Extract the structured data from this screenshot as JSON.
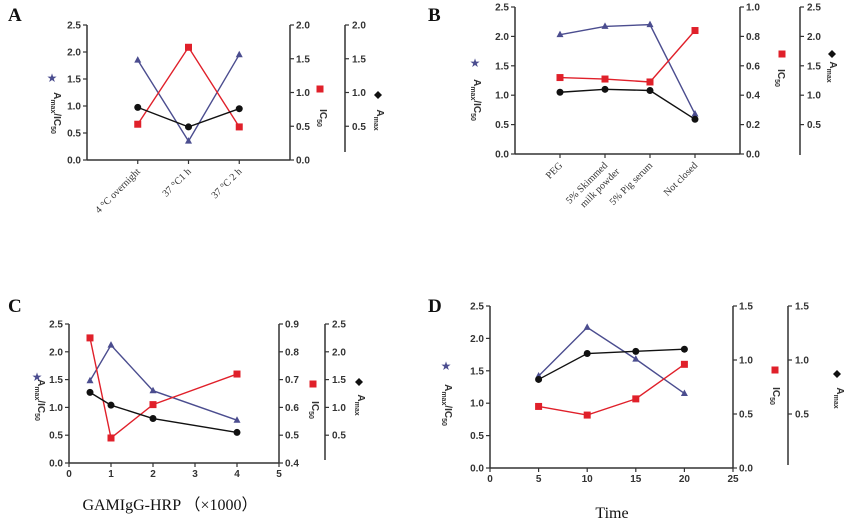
{
  "colors": {
    "ratio": "#4b4d8f",
    "ic50": "#e0202a",
    "amax": "#111111"
  },
  "chart_data": [
    {
      "panel": "A",
      "type": "line",
      "x_type": "category",
      "categories": [
        "4 °C overnight",
        "37 °C1 h",
        "37 °C 2 h"
      ],
      "xlabel": "",
      "left_axis": {
        "label": [
          [
            "A",
            ""
          ],
          [
            "max",
            "sub"
          ],
          [
            "/IC",
            ""
          ],
          [
            "50",
            "sub"
          ]
        ],
        "range": [
          0,
          2.5
        ],
        "ticks": [
          0,
          0.5,
          1,
          1.5,
          2,
          2.5
        ]
      },
      "ic50_axis": {
        "label": [
          [
            "IC",
            ""
          ],
          [
            "50",
            "sub"
          ]
        ],
        "range": [
          0,
          2
        ],
        "ticks": [
          0,
          0.5,
          1,
          1.5,
          2
        ]
      },
      "amax_axis": {
        "label": [
          [
            "A",
            ""
          ],
          [
            "max",
            "sub"
          ]
        ],
        "range": [
          0,
          2
        ],
        "ticks": [
          0.5,
          1,
          1.5,
          2
        ]
      },
      "series": [
        {
          "axis": "left",
          "marker": "triangle",
          "values": [
            1.85,
            0.35,
            1.95
          ]
        },
        {
          "axis": "ic50",
          "marker": "square",
          "values": [
            0.53,
            1.67,
            0.49
          ]
        },
        {
          "axis": "amax",
          "marker": "circle",
          "values": [
            0.78,
            0.49,
            0.76
          ]
        }
      ]
    },
    {
      "panel": "B",
      "type": "line",
      "x_type": "category",
      "categories": [
        "PEG",
        "5% Skimmed\nmilk powder",
        "5% Pig serum",
        "Not closed"
      ],
      "xlabel": "",
      "left_axis": {
        "label": [
          [
            "A",
            ""
          ],
          [
            "max",
            "sub"
          ],
          [
            "/IC",
            ""
          ],
          [
            "50",
            "sub"
          ]
        ],
        "range": [
          0,
          2.5
        ],
        "ticks": [
          0,
          0.5,
          1,
          1.5,
          2,
          2.5
        ]
      },
      "ic50_axis": {
        "label": [
          [
            "IC",
            ""
          ],
          [
            "50",
            "sub"
          ]
        ],
        "range": [
          0,
          1
        ],
        "ticks": [
          0,
          0.2,
          0.4,
          0.6,
          0.8,
          1.0
        ]
      },
      "amax_axis": {
        "label": [
          [
            "A",
            ""
          ],
          [
            "max",
            "sub"
          ]
        ],
        "range": [
          0,
          2.5
        ],
        "ticks": [
          0.5,
          1,
          1.5,
          2,
          2.5
        ]
      },
      "series": [
        {
          "axis": "left",
          "marker": "triangle",
          "values": [
            2.03,
            2.17,
            2.2,
            0.68
          ]
        },
        {
          "axis": "ic50",
          "marker": "square",
          "values": [
            0.52,
            0.51,
            0.49,
            0.84
          ]
        },
        {
          "axis": "amax",
          "marker": "circle",
          "values": [
            1.05,
            1.1,
            1.08,
            0.59
          ]
        }
      ]
    },
    {
      "panel": "C",
      "type": "line",
      "x_type": "numeric",
      "x": [
        0.5,
        1,
        2,
        4
      ],
      "xlim": [
        0,
        5
      ],
      "xticks": [
        0,
        1,
        2,
        3,
        4,
        5
      ],
      "xlabel": "GAMIgG-HRP （×1000）",
      "left_axis": {
        "label": [
          [
            "A",
            ""
          ],
          [
            "max",
            "sub"
          ],
          [
            "/IC",
            ""
          ],
          [
            "50",
            "sub"
          ]
        ],
        "range": [
          0,
          2.5
        ],
        "ticks": [
          0,
          0.5,
          1,
          1.5,
          2,
          2.5
        ]
      },
      "ic50_axis": {
        "label": [
          [
            "IC",
            ""
          ],
          [
            "50",
            "sub"
          ]
        ],
        "range": [
          0.4,
          0.9
        ],
        "ticks": [
          0.4,
          0.5,
          0.6,
          0.7,
          0.8,
          0.9
        ]
      },
      "amax_axis": {
        "label": [
          [
            "A",
            ""
          ],
          [
            "max",
            "sub"
          ]
        ],
        "range": [
          0,
          2.5
        ],
        "ticks": [
          0.5,
          1,
          1.5,
          2,
          2.5
        ]
      },
      "series": [
        {
          "axis": "left",
          "marker": "triangle",
          "values": [
            1.48,
            2.12,
            1.3,
            0.77
          ]
        },
        {
          "axis": "ic50",
          "marker": "square",
          "values": [
            0.85,
            0.49,
            0.61,
            0.72
          ]
        },
        {
          "axis": "amax",
          "marker": "circle",
          "values": [
            1.27,
            1.04,
            0.8,
            0.55
          ]
        }
      ]
    },
    {
      "panel": "D",
      "type": "line",
      "x_type": "numeric",
      "x": [
        5,
        10,
        15,
        20
      ],
      "xlim": [
        0,
        25
      ],
      "xticks": [
        0,
        5,
        10,
        15,
        20,
        25
      ],
      "xlabel": "Time",
      "left_axis": {
        "label": [
          [
            "A",
            ""
          ],
          [
            "max",
            "sub"
          ],
          [
            "/IC",
            ""
          ],
          [
            "50",
            "sub"
          ]
        ],
        "range": [
          0,
          2.5
        ],
        "ticks": [
          0,
          0.5,
          1,
          1.5,
          2,
          2.5
        ]
      },
      "ic50_axis": {
        "label": [
          [
            "IC",
            ""
          ],
          [
            "50",
            "sub"
          ]
        ],
        "range": [
          0,
          1.5
        ],
        "ticks": [
          0,
          0.5,
          1.0,
          1.5
        ]
      },
      "amax_axis": {
        "label": [
          [
            "A",
            ""
          ],
          [
            "max",
            "sub"
          ]
        ],
        "range": [
          0,
          1.5
        ],
        "ticks": [
          0.5,
          1.0,
          1.5
        ]
      },
      "series": [
        {
          "axis": "left",
          "marker": "triangle",
          "values": [
            1.42,
            2.17,
            1.68,
            1.15
          ]
        },
        {
          "axis": "ic50",
          "marker": "square",
          "values": [
            0.57,
            0.49,
            0.64,
            0.96
          ]
        },
        {
          "axis": "amax",
          "marker": "circle",
          "values": [
            0.82,
            1.06,
            1.08,
            1.1
          ]
        }
      ]
    }
  ]
}
